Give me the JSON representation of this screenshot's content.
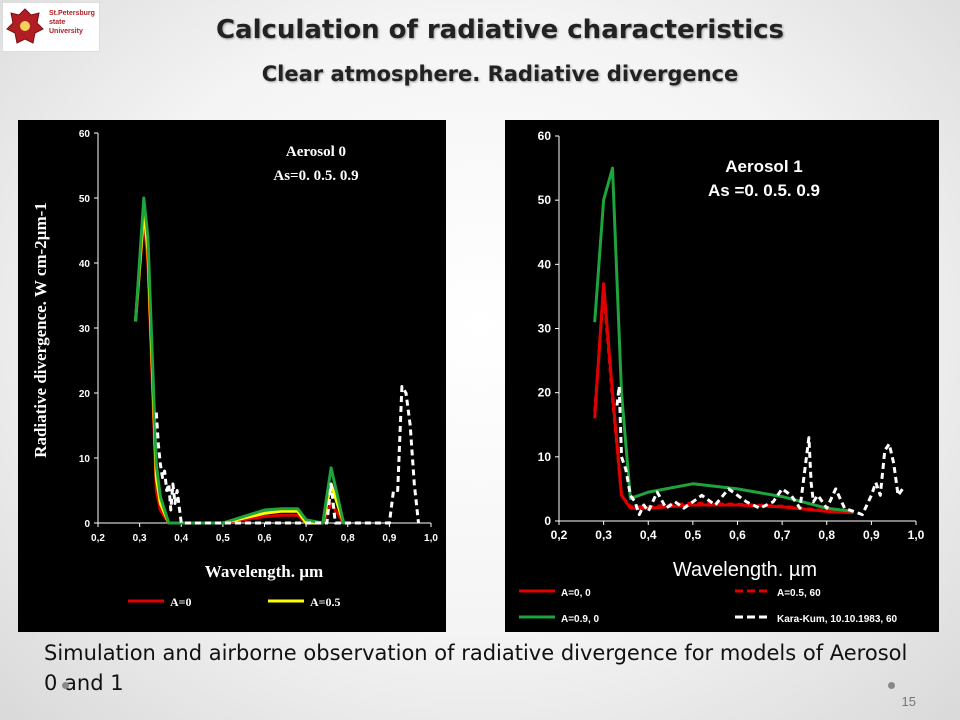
{
  "logo": {
    "text_lines": [
      "St.Petersburg",
      "state",
      "University"
    ]
  },
  "slide": {
    "title": "Calculation of radiative characteristics",
    "subtitle": "Clear atmosphere. Radiative divergence",
    "caption": "Simulation and airborne observation of radiative divergence for models of Aerosol 0 and 1",
    "page_number": "15"
  },
  "colors": {
    "red": "#e00000",
    "yellow": "#ffff00",
    "green": "#1fa33c",
    "white": "#ffffff",
    "axis": "#ffffff"
  },
  "chart_data": [
    {
      "type": "line",
      "annotation": [
        "Aerosol  0",
        "As=0. 0.5. 0.9"
      ],
      "xlabel": "Wavelength.  µm",
      "ylabel": "Radiative   divergence. W cm-2µm-1",
      "xlim": [
        0.2,
        1.0
      ],
      "ylim": [
        0,
        60
      ],
      "xticks": [
        "0,2",
        "0,3",
        "0,4",
        "0,5",
        "0,6",
        "0,7",
        "0,8",
        "0,9",
        "1,0"
      ],
      "yticks": [
        "0",
        "10",
        "20",
        "30",
        "40",
        "50",
        "60"
      ],
      "grid": false,
      "legend_position": "bottom",
      "series": [
        {
          "name": "A=0",
          "color": "red",
          "dash": false,
          "x": [
            0.29,
            0.31,
            0.32,
            0.34,
            0.35,
            0.37,
            0.45,
            0.5,
            0.6,
            0.64,
            0.68,
            0.7,
            0.74,
            0.76,
            0.79,
            0.8
          ],
          "y": [
            31,
            47,
            40,
            5,
            2,
            0,
            0,
            0,
            1,
            1.2,
            1.2,
            0,
            0,
            3,
            0,
            0
          ]
        },
        {
          "name": "A=0.5",
          "color": "yellow",
          "dash": false,
          "x": [
            0.29,
            0.31,
            0.32,
            0.34,
            0.35,
            0.37,
            0.45,
            0.5,
            0.6,
            0.64,
            0.68,
            0.7,
            0.74,
            0.76,
            0.79,
            0.8
          ],
          "y": [
            31,
            48,
            42,
            7,
            3,
            0,
            0,
            0,
            1.5,
            1.8,
            1.8,
            0,
            0,
            6,
            0,
            0
          ]
        },
        {
          "name": "",
          "color": "green",
          "dash": false,
          "x": [
            0.29,
            0.31,
            0.32,
            0.34,
            0.35,
            0.37,
            0.45,
            0.5,
            0.6,
            0.64,
            0.68,
            0.7,
            0.74,
            0.76,
            0.79,
            0.8
          ],
          "y": [
            31,
            50,
            44,
            9,
            4,
            0,
            0,
            0,
            2,
            2.2,
            2.2,
            0.5,
            0,
            8.5,
            0,
            0
          ]
        },
        {
          "name": "",
          "color": "white",
          "dash": true,
          "x": [
            0.34,
            0.345,
            0.35,
            0.355,
            0.36,
            0.365,
            0.37,
            0.375,
            0.38,
            0.385,
            0.39,
            0.4,
            0.42,
            0.5,
            0.7,
            0.75,
            0.76,
            0.77,
            0.8,
            0.9,
            0.91,
            0.92,
            0.93,
            0.94,
            0.95,
            0.96,
            0.97
          ],
          "y": [
            17,
            12,
            9,
            7,
            8,
            5,
            6,
            2,
            6,
            3,
            5,
            0,
            0,
            0,
            0,
            0,
            6,
            0,
            0,
            0,
            5,
            5,
            21,
            20,
            15,
            6,
            0
          ]
        }
      ]
    },
    {
      "type": "line",
      "annotation": [
        "Aerosol   1",
        "As =0. 0.5. 0.9"
      ],
      "xlabel": "Wavelength.  µm",
      "xlim": [
        0.2,
        1.0
      ],
      "ylim": [
        0,
        60
      ],
      "xticks": [
        "0,2",
        "0,3",
        "0,4",
        "0,5",
        "0,6",
        "0,7",
        "0,8",
        "0,9",
        "1,0"
      ],
      "yticks": [
        "0",
        "10",
        "20",
        "30",
        "40",
        "50",
        "60"
      ],
      "grid": false,
      "legend_position": "bottom",
      "series": [
        {
          "name": "A=0, 0",
          "color": "red",
          "dash": false,
          "x": [
            0.28,
            0.3,
            0.32,
            0.34,
            0.36,
            0.4,
            0.5,
            0.6,
            0.7,
            0.8,
            0.86
          ],
          "y": [
            16,
            37,
            20,
            4,
            2,
            2,
            2.5,
            2.5,
            2.2,
            1.5,
            1.3
          ]
        },
        {
          "name": "A=0.5, 60",
          "color": "red",
          "dash": true,
          "x": [
            0.28,
            0.3,
            0.32,
            0.34,
            0.36,
            0.4,
            0.5,
            0.6,
            0.7,
            0.8,
            0.86
          ],
          "y": [
            17,
            36,
            19,
            4,
            2.2,
            2.2,
            2.8,
            2.6,
            2.3,
            1.6,
            1.4
          ]
        },
        {
          "name": "A=0.9, 0",
          "color": "green",
          "dash": false,
          "x": [
            0.28,
            0.3,
            0.32,
            0.34,
            0.36,
            0.4,
            0.5,
            0.6,
            0.7,
            0.8,
            0.86
          ],
          "y": [
            31,
            50,
            55,
            20,
            3.5,
            4.5,
            5.8,
            5,
            3.8,
            2,
            1.5
          ]
        },
        {
          "name": "Kara-Kum, 10.10.1983, 60",
          "color": "white",
          "dash": true,
          "x": [
            0.33,
            0.335,
            0.34,
            0.35,
            0.36,
            0.37,
            0.38,
            0.39,
            0.4,
            0.42,
            0.44,
            0.46,
            0.48,
            0.5,
            0.52,
            0.55,
            0.58,
            0.6,
            0.62,
            0.65,
            0.68,
            0.7,
            0.72,
            0.74,
            0.76,
            0.765,
            0.77,
            0.78,
            0.8,
            0.82,
            0.84,
            0.86,
            0.88,
            0.9,
            0.91,
            0.92,
            0.93,
            0.94,
            0.95,
            0.96,
            0.97
          ],
          "y": [
            18,
            21,
            10,
            8,
            4,
            3,
            1,
            2.5,
            1.5,
            4.5,
            2,
            3,
            2,
            3,
            4,
            2.5,
            5,
            4,
            3,
            2,
            3,
            5,
            4,
            2,
            13,
            6,
            3,
            4,
            2,
            5,
            2,
            1.5,
            1,
            4,
            6,
            4,
            11,
            12,
            9,
            4,
            5
          ]
        }
      ]
    }
  ]
}
